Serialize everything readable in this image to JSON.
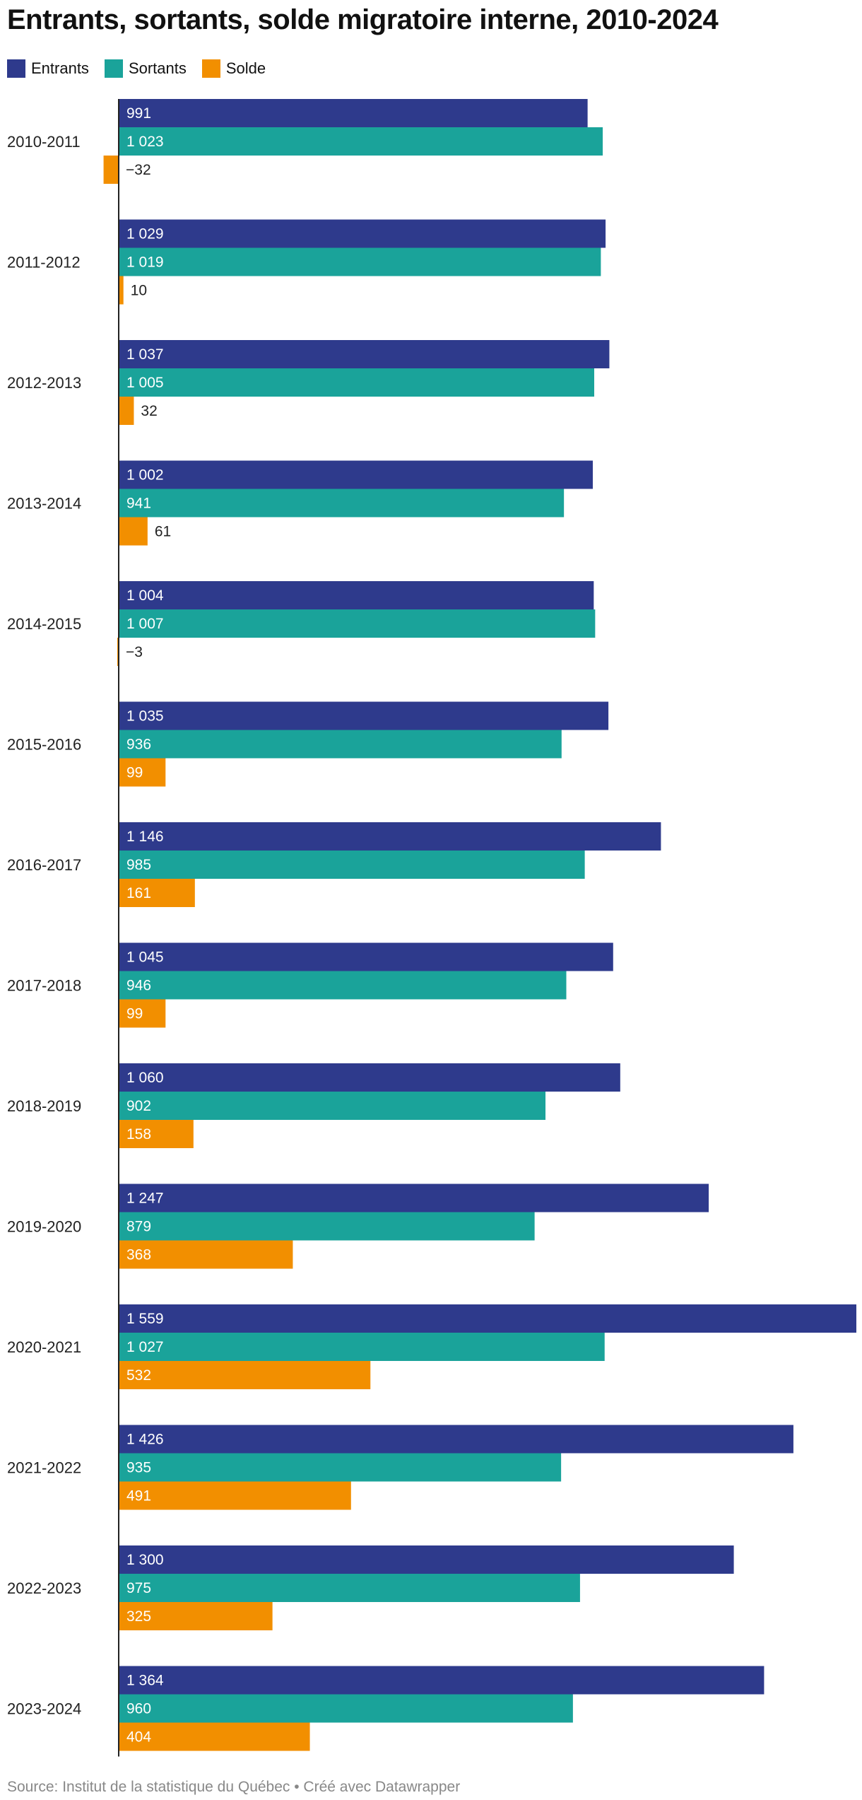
{
  "chart_data": {
    "type": "bar",
    "orientation": "horizontal",
    "title": "Entrants, sortants, solde migratoire interne, 2010-2024",
    "categories": [
      "2010-2011",
      "2011-2012",
      "2012-2013",
      "2013-2014",
      "2014-2015",
      "2015-2016",
      "2016-2017",
      "2017-2018",
      "2018-2019",
      "2019-2020",
      "2020-2021",
      "2021-2022",
      "2022-2023",
      "2023-2024"
    ],
    "series": [
      {
        "name": "Entrants",
        "color": "#2e3a8c",
        "values": [
          991,
          1029,
          1037,
          1002,
          1004,
          1035,
          1146,
          1045,
          1060,
          1247,
          1559,
          1426,
          1300,
          1364
        ],
        "labels": [
          "991",
          "1 029",
          "1 037",
          "1 002",
          "1 004",
          "1 035",
          "1 146",
          "1 045",
          "1 060",
          "1 247",
          "1 559",
          "1 426",
          "1 300",
          "1 364"
        ]
      },
      {
        "name": "Sortants",
        "color": "#1aa39a",
        "values": [
          1023,
          1019,
          1005,
          941,
          1007,
          936,
          985,
          946,
          902,
          879,
          1027,
          935,
          975,
          960
        ],
        "labels": [
          "1 023",
          "1 019",
          "1 005",
          "941",
          "1 007",
          "936",
          "985",
          "946",
          "902",
          "879",
          "1 027",
          "935",
          "975",
          "960"
        ]
      },
      {
        "name": "Solde",
        "color": "#f28f00",
        "values": [
          -32,
          10,
          32,
          61,
          -3,
          99,
          161,
          99,
          158,
          368,
          532,
          491,
          325,
          404
        ],
        "labels": [
          "−32",
          "10",
          "32",
          "61",
          "−3",
          "99",
          "161",
          "99",
          "158",
          "368",
          "532",
          "491",
          "325",
          "404"
        ]
      }
    ],
    "xlim": [
      0,
      1559
    ],
    "legend_position": "top-left",
    "grid": false
  },
  "footer": "Source: Institut de la statistique du Québec • Créé avec Datawrapper"
}
